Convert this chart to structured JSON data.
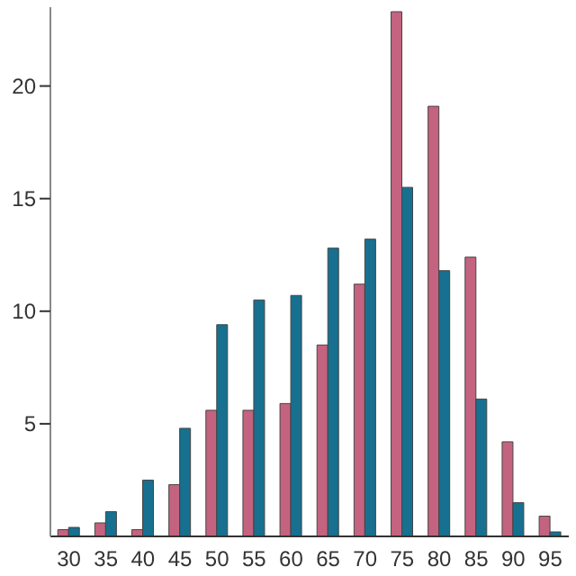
{
  "chart_data": {
    "type": "bar",
    "categories": [
      "30",
      "35",
      "40",
      "45",
      "50",
      "55",
      "60",
      "65",
      "70",
      "75",
      "80",
      "85",
      "90",
      "95"
    ],
    "series": [
      {
        "color": "#c4637f",
        "values": [
          0.3,
          0.6,
          0.3,
          2.3,
          5.6,
          5.6,
          5.9,
          8.5,
          11.2,
          23.3,
          19.1,
          12.4,
          4.2,
          0.9
        ]
      },
      {
        "color": "#17708f",
        "values": [
          0.4,
          1.1,
          2.5,
          4.8,
          9.4,
          10.5,
          10.7,
          12.8,
          13.2,
          15.5,
          11.8,
          6.1,
          1.5,
          0.2
        ]
      }
    ],
    "ylim": [
      0,
      23.5
    ],
    "yticks": [
      5,
      10,
      15,
      20
    ],
    "grid": false,
    "legend": false
  }
}
